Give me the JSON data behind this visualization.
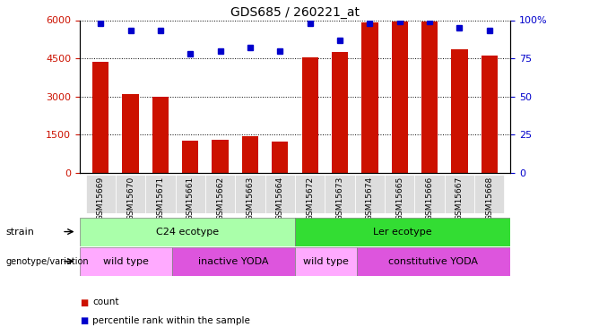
{
  "title": "GDS685 / 260221_at",
  "samples": [
    "GSM15669",
    "GSM15670",
    "GSM15671",
    "GSM15661",
    "GSM15662",
    "GSM15663",
    "GSM15664",
    "GSM15672",
    "GSM15673",
    "GSM15674",
    "GSM15665",
    "GSM15666",
    "GSM15667",
    "GSM15668"
  ],
  "counts": [
    4350,
    3100,
    2980,
    1280,
    1310,
    1460,
    1240,
    4530,
    4750,
    5900,
    5950,
    5950,
    4850,
    4620
  ],
  "percentiles": [
    98,
    93,
    93,
    78,
    80,
    82,
    80,
    98,
    87,
    98,
    99,
    99,
    95,
    93
  ],
  "ylim_left": [
    0,
    6000
  ],
  "ylim_right": [
    0,
    100
  ],
  "yticks_left": [
    0,
    1500,
    3000,
    4500,
    6000
  ],
  "yticks_right": [
    0,
    25,
    50,
    75,
    100
  ],
  "bar_color": "#cc1100",
  "dot_color": "#0000cc",
  "strain_groups": [
    {
      "label": "C24 ecotype",
      "start": 0,
      "end": 7,
      "color": "#aaffaa"
    },
    {
      "label": "Ler ecotype",
      "start": 7,
      "end": 14,
      "color": "#33dd33"
    }
  ],
  "genotype_groups": [
    {
      "label": "wild type",
      "start": 0,
      "end": 3,
      "color": "#ffaaff"
    },
    {
      "label": "inactive YODA",
      "start": 3,
      "end": 7,
      "color": "#dd55dd"
    },
    {
      "label": "wild type",
      "start": 7,
      "end": 9,
      "color": "#ffaaff"
    },
    {
      "label": "constitutive YODA",
      "start": 9,
      "end": 14,
      "color": "#dd55dd"
    }
  ],
  "legend_items": [
    {
      "label": "count",
      "color": "#cc1100"
    },
    {
      "label": "percentile rank within the sample",
      "color": "#0000cc"
    }
  ],
  "tick_label_color_left": "#cc1100",
  "tick_label_color_right": "#0000cc",
  "xtick_bg": "#dddddd",
  "label_left_strain": "strain",
  "label_left_geno": "genotype/variation"
}
